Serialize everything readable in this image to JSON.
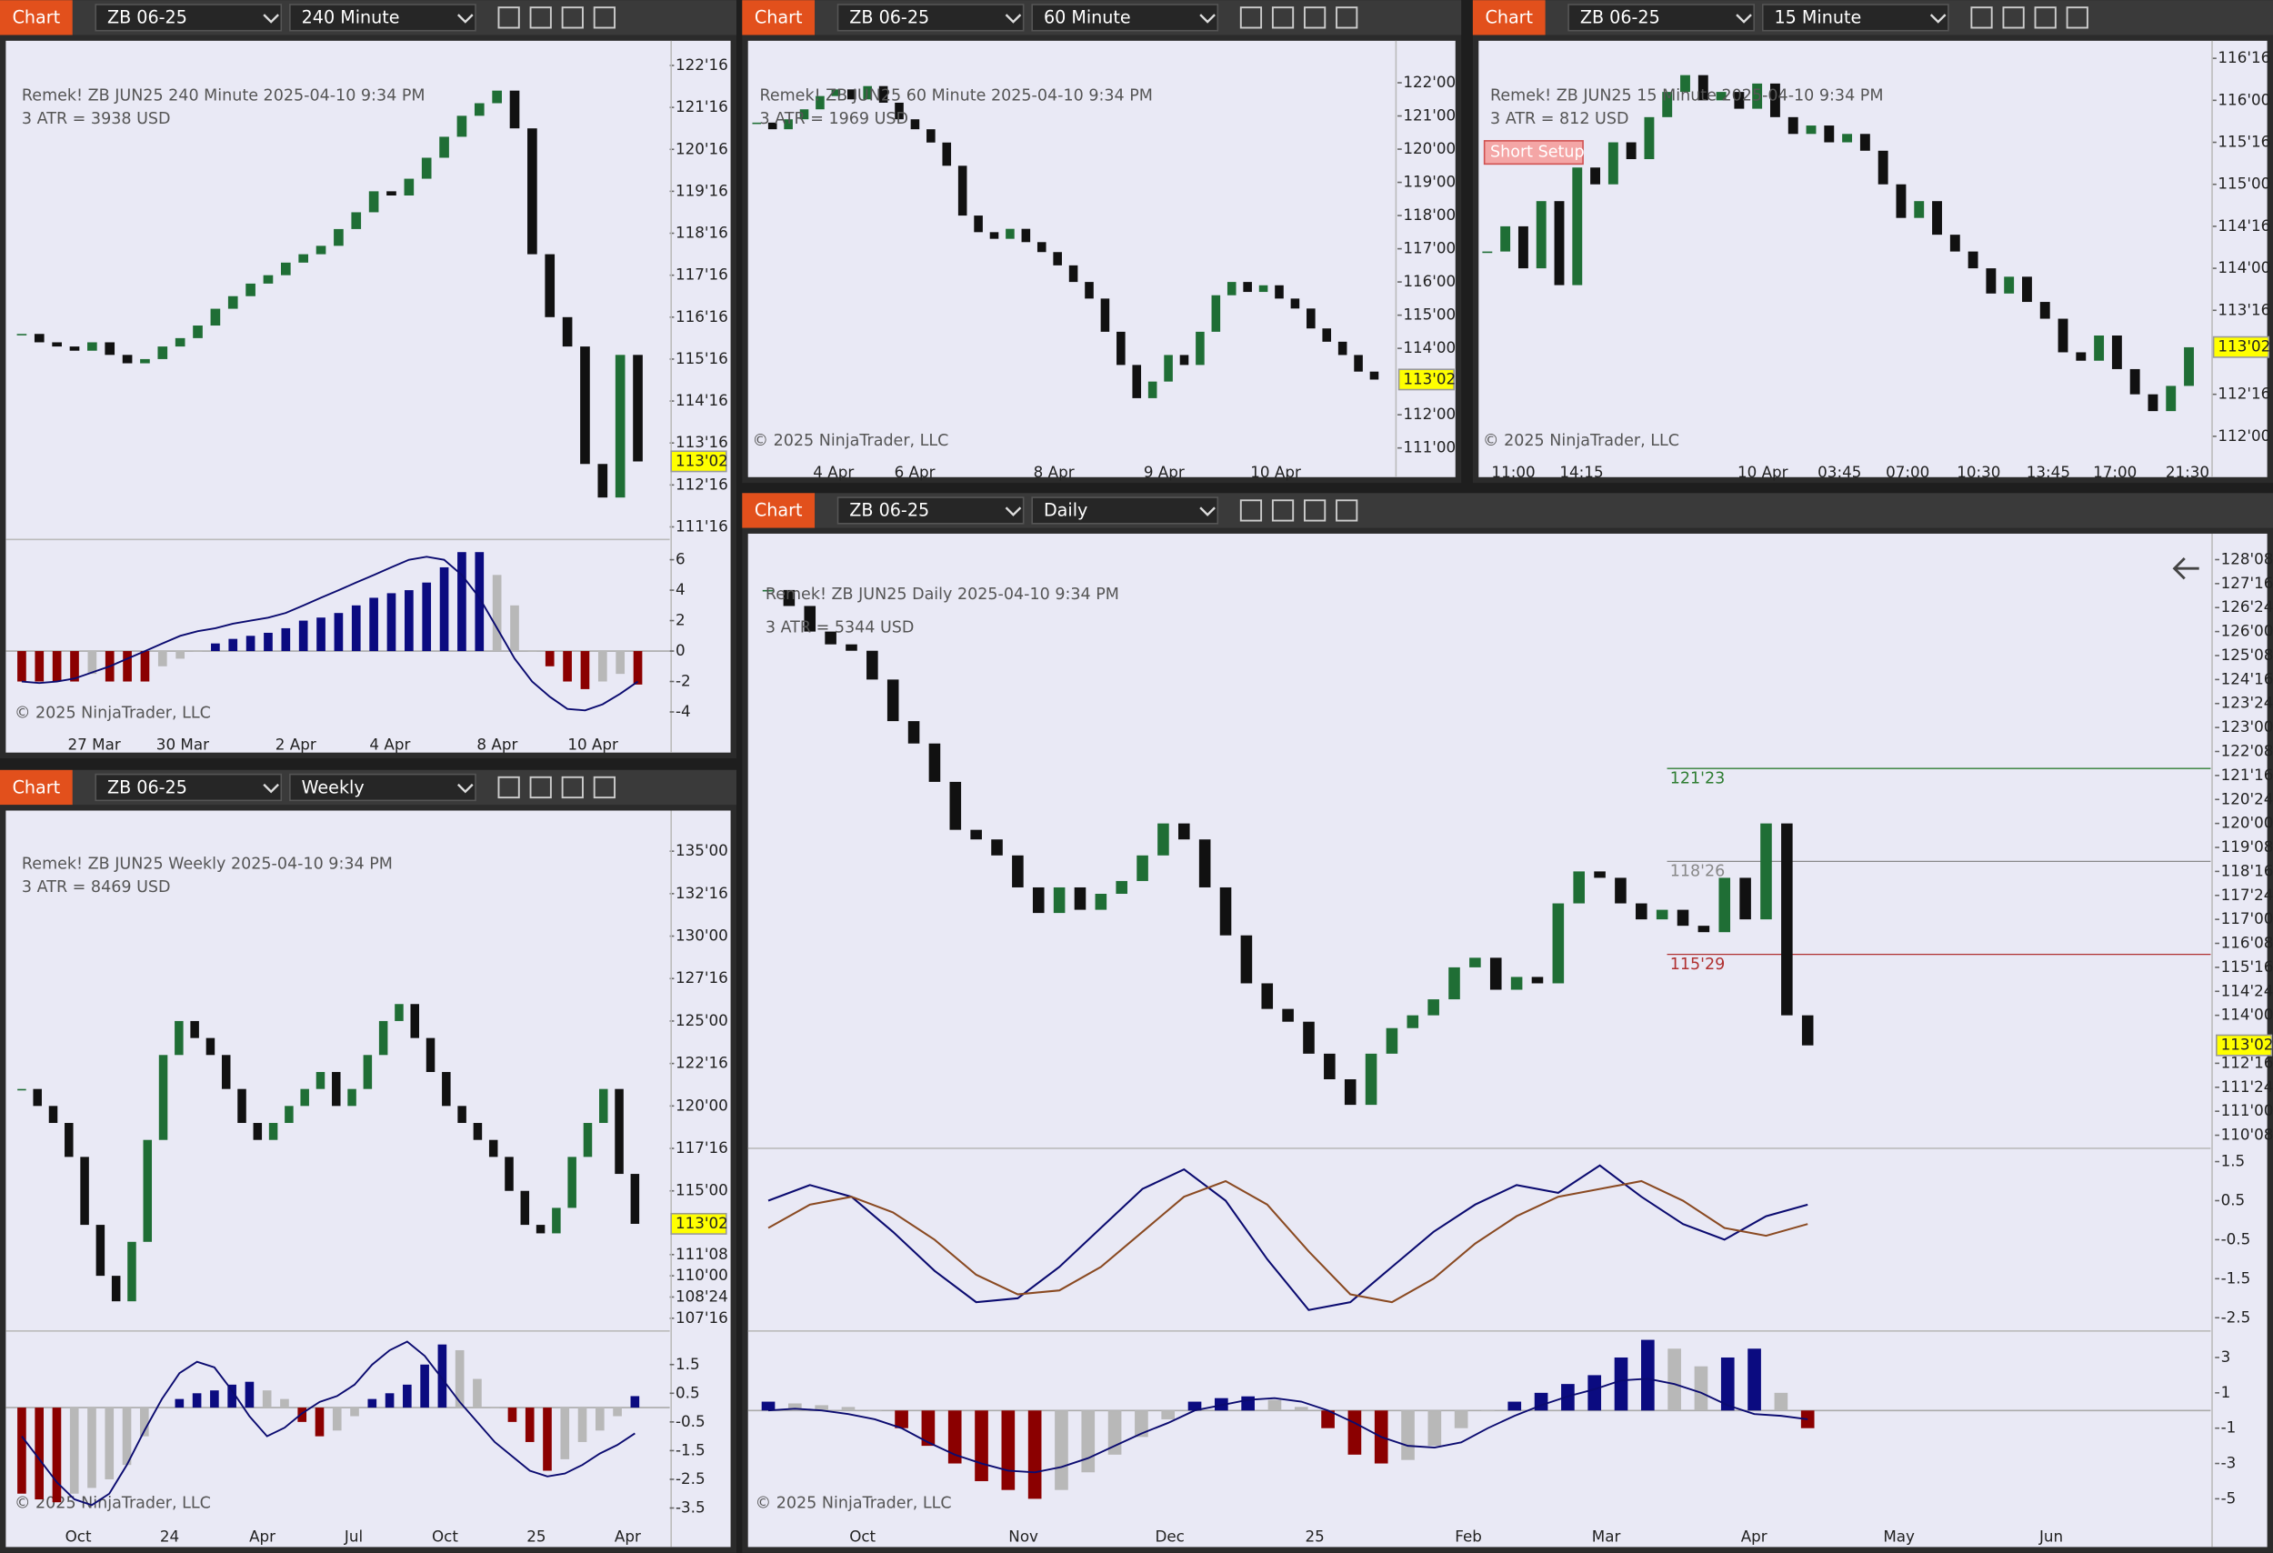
{
  "panels": [
    {
      "toolbar": {
        "label": "Chart",
        "instrument": "ZB 06-25",
        "interval": "240 Minute"
      },
      "info": "Remek!  ZB JUN25  240 Minute  2025-04-10 9:34 PM",
      "atr": "3 ATR = 3938 USD",
      "copyright": "© 2025 NinjaTrader, LLC",
      "last_price": {
        "value": 113.0625,
        "label": "113'02"
      },
      "ylim": [
        111.2,
        122.95
      ],
      "yticks": [
        {
          "value": 122.5,
          "label": "122'16"
        },
        {
          "value": 121.5,
          "label": "121'16"
        },
        {
          "value": 120.5,
          "label": "120'16"
        },
        {
          "value": 119.5,
          "label": "119'16"
        },
        {
          "value": 118.5,
          "label": "118'16"
        },
        {
          "value": 117.5,
          "label": "117'16"
        },
        {
          "value": 116.5,
          "label": "116'16"
        },
        {
          "value": 115.5,
          "label": "115'16"
        },
        {
          "value": 114.5,
          "label": "114'16"
        },
        {
          "value": 113.5,
          "label": "113'16"
        },
        {
          "value": 112.5,
          "label": "112'16"
        },
        {
          "value": 111.5,
          "label": "111'16"
        }
      ],
      "time_ticks": [
        "27 Mar",
        "30 Mar",
        "2 Apr",
        "4 Apr",
        "8 Apr",
        "10 Apr"
      ],
      "closes": [
        116.1,
        115.9,
        115.8,
        115.7,
        115.9,
        115.6,
        115.4,
        115.5,
        115.8,
        116.0,
        116.3,
        116.7,
        117.0,
        117.3,
        117.5,
        117.8,
        118.0,
        118.2,
        118.6,
        119.0,
        119.5,
        119.4,
        119.8,
        120.3,
        120.8,
        121.3,
        121.6,
        121.9,
        121.0,
        118.0,
        116.5,
        115.8,
        113.0,
        112.2,
        115.6,
        113.06
      ],
      "up_color": "#1f6e35",
      "down_color": "#111111",
      "indicator": {
        "ylim": [
          -5.05,
          7.33
        ],
        "yticks": [
          6,
          4,
          2,
          0,
          -2,
          -4
        ],
        "hist": [
          -2,
          -2,
          -2,
          -2,
          -1.5,
          -2,
          -2,
          -2,
          -1,
          -0.5,
          0,
          0.5,
          0.8,
          1,
          1.2,
          1.5,
          2,
          2.2,
          2.5,
          3,
          3.5,
          3.8,
          4,
          4.5,
          5.5,
          6.5,
          6.5,
          5,
          3,
          0,
          -1,
          -2,
          -2.5,
          -2,
          -1.5,
          -2.2
        ],
        "signal": [
          -2,
          -2.1,
          -2,
          -1.8,
          -1.4,
          -1,
          -0.5,
          0,
          0.5,
          1,
          1.3,
          1.5,
          1.8,
          2,
          2.2,
          2.5,
          3,
          3.5,
          4,
          4.5,
          5,
          5.5,
          6,
          6.2,
          6,
          5,
          3.5,
          1.5,
          -0.5,
          -2,
          -3,
          -3.8,
          -3.9,
          -3.5,
          -2.8,
          -2
        ],
        "pos_color": "#0b0b80",
        "neg_color": "#8b0000",
        "bar_color": "#b8b8b8",
        "line_color": "#0b0b70"
      }
    },
    {
      "toolbar": {
        "label": "Chart",
        "instrument": "ZB 06-25",
        "interval": "60 Minute"
      },
      "info": "Remek!  ZB JUN25  60 Minute  2025-04-10 9:34 PM",
      "atr": "3 ATR = 1969 USD",
      "copyright": "© 2025 NinjaTrader, LLC",
      "last_price": {
        "value": 113.0625,
        "label": "113'02"
      },
      "ylim": [
        110.82,
        123.09
      ],
      "yticks": [
        {
          "value": 122,
          "label": "122'00"
        },
        {
          "value": 121,
          "label": "121'00"
        },
        {
          "value": 120,
          "label": "120'00"
        },
        {
          "value": 119,
          "label": "119'00"
        },
        {
          "value": 118,
          "label": "118'00"
        },
        {
          "value": 117,
          "label": "117'00"
        },
        {
          "value": 116,
          "label": "116'00"
        },
        {
          "value": 115,
          "label": "115'00"
        },
        {
          "value": 114,
          "label": "114'00"
        },
        {
          "value": 112,
          "label": "112'00"
        },
        {
          "value": 111,
          "label": "111'00"
        }
      ],
      "time_ticks": [
        "4 Apr",
        "6 Apr",
        "8 Apr",
        "9 Apr",
        "10 Apr"
      ],
      "closes": [
        120.8,
        120.6,
        120.9,
        121.2,
        121.6,
        121.8,
        121.5,
        121.9,
        121.4,
        120.9,
        120.6,
        120.2,
        119.5,
        118,
        117.5,
        117.3,
        117.6,
        117.2,
        116.9,
        116.5,
        116,
        115.5,
        114.5,
        113.5,
        112.5,
        113,
        113.8,
        113.5,
        114.5,
        115.6,
        116,
        115.7,
        115.9,
        115.5,
        115.2,
        114.6,
        114.2,
        113.8,
        113.3,
        113.06
      ],
      "up_color": "#1f6e35",
      "down_color": "#111111"
    },
    {
      "toolbar": {
        "label": "Chart",
        "instrument": "ZB 06-25",
        "interval": "15 Minute"
      },
      "info": "Remek!  ZB JUN25  15 Minute  2025-04-10 9:34 PM",
      "atr": "3 ATR = 812 USD",
      "copyright": "© 2025 NinjaTrader, LLC",
      "tag": "Short Setup",
      "last_price": {
        "value": 113.0625,
        "label": "113'02"
      },
      "ylim": [
        111.79,
        116.64
      ],
      "yticks": [
        {
          "value": 116.5,
          "label": "116'16"
        },
        {
          "value": 116,
          "label": "116'00"
        },
        {
          "value": 115.5,
          "label": "115'16"
        },
        {
          "value": 115,
          "label": "115'00"
        },
        {
          "value": 114.5,
          "label": "114'16"
        },
        {
          "value": 114,
          "label": "114'00"
        },
        {
          "value": 113.5,
          "label": "113'16"
        },
        {
          "value": 112.5,
          "label": "112'16"
        },
        {
          "value": 112,
          "label": "112'00"
        }
      ],
      "time_ticks": [
        "11:00",
        "14:15",
        "10 Apr",
        "03:45",
        "07:00",
        "10:30",
        "13:45",
        "17:00",
        "21:30"
      ],
      "closes": [
        114.2,
        114.5,
        114.0,
        114.8,
        113.8,
        115.2,
        115.0,
        115.5,
        115.3,
        115.8,
        116.1,
        116.3,
        116.0,
        116.1,
        115.9,
        116.2,
        115.8,
        115.6,
        115.7,
        115.5,
        115.6,
        115.4,
        115.0,
        114.6,
        114.8,
        114.4,
        114.2,
        114.0,
        113.7,
        113.9,
        113.6,
        113.4,
        113.0,
        112.9,
        113.2,
        112.8,
        112.5,
        112.3,
        112.6,
        113.06
      ],
      "up_color": "#1f6e35",
      "down_color": "#111111"
    },
    {
      "toolbar": {
        "label": "Chart",
        "instrument": "ZB 06-25",
        "interval": "Weekly"
      },
      "info": "Remek!  ZB JUN25  Weekly  2025-04-10 9:34 PM",
      "atr": "3 ATR = 8469 USD",
      "copyright": "© 2025 NinjaTrader, LLC",
      "last_price": {
        "value": 113.0625,
        "label": "113'02"
      },
      "ylim": [
        106.75,
        137.05
      ],
      "yticks": [
        {
          "value": 135,
          "label": "135'00"
        },
        {
          "value": 132.5,
          "label": "132'16"
        },
        {
          "value": 130,
          "label": "130'00"
        },
        {
          "value": 127.5,
          "label": "127'16"
        },
        {
          "value": 125,
          "label": "125'00"
        },
        {
          "value": 122.5,
          "label": "122'16"
        },
        {
          "value": 120,
          "label": "120'00"
        },
        {
          "value": 117.5,
          "label": "117'16"
        },
        {
          "value": 115,
          "label": "115'00"
        },
        {
          "value": 111.25,
          "label": "111'08"
        },
        {
          "value": 110,
          "label": "110'00"
        },
        {
          "value": 108.75,
          "label": "108'24"
        },
        {
          "value": 107.5,
          "label": "107'16"
        }
      ],
      "time_ticks": [
        "Oct",
        "24",
        "Apr",
        "Jul",
        "Oct",
        "25",
        "Apr"
      ],
      "closes": [
        121,
        120,
        119,
        117,
        113,
        110,
        108.5,
        112,
        118,
        123,
        125,
        124,
        123,
        121,
        119,
        118,
        119,
        120,
        121,
        122,
        120,
        121,
        123,
        125,
        126,
        124,
        122,
        120,
        119,
        118,
        117,
        115,
        113,
        112.5,
        114,
        117,
        119,
        121,
        116,
        113.06
      ],
      "up_color": "#1f6e35",
      "down_color": "#111111",
      "indicator": {
        "ylim": [
          -3.9,
          2.67
        ],
        "yticks": [
          1.5,
          0.5,
          -0.5,
          -1.5,
          -2.5,
          -3.5
        ],
        "hist": [
          -3,
          -3.2,
          -3.3,
          -3,
          -2.8,
          -2.5,
          -2,
          -1,
          0,
          0.3,
          0.5,
          0.6,
          0.8,
          0.9,
          0.6,
          0.3,
          -0.5,
          -1,
          -0.8,
          -0.3,
          0.3,
          0.5,
          0.8,
          1.5,
          2.2,
          2,
          1,
          0,
          -0.5,
          -1.2,
          -2.2,
          -1.8,
          -1.2,
          -0.8,
          -0.3,
          0.4
        ],
        "signal": [
          -1,
          -1.8,
          -2.6,
          -3.2,
          -3.4,
          -3,
          -2,
          -0.8,
          0.3,
          1.2,
          1.6,
          1.4,
          0.6,
          -0.3,
          -1,
          -0.7,
          -0.2,
          0.2,
          0.4,
          0.8,
          1.5,
          2,
          2.3,
          1.8,
          1,
          0.2,
          -0.5,
          -1.2,
          -1.7,
          -2.2,
          -2.4,
          -2.3,
          -2,
          -1.6,
          -1.3,
          -0.9
        ],
        "pos_color": "#0b0b80",
        "neg_color": "#8b0000",
        "bar_color": "#b8b8b8",
        "line_color": "#0b0b70"
      }
    },
    {
      "toolbar": {
        "label": "Chart",
        "instrument": "ZB 06-25",
        "interval": "Daily"
      },
      "info": "Remek!  ZB JUN25  Daily  2025-04-10 9:34 PM",
      "atr": "3 ATR = 5344 USD",
      "copyright": "© 2025 NinjaTrader, LLC",
      "last_price": {
        "value": 113.0625,
        "label": "113'02"
      },
      "ylim": [
        109.84,
        128.88
      ],
      "yticks": [
        {
          "value": 128.25,
          "label": "128'08"
        },
        {
          "value": 127.5,
          "label": "127'16"
        },
        {
          "value": 126.75,
          "label": "126'24"
        },
        {
          "value": 126,
          "label": "126'00"
        },
        {
          "value": 125.25,
          "label": "125'08"
        },
        {
          "value": 124.5,
          "label": "124'16"
        },
        {
          "value": 123.75,
          "label": "123'24"
        },
        {
          "value": 123,
          "label": "123'00"
        },
        {
          "value": 122.25,
          "label": "122'08"
        },
        {
          "value": 121.5,
          "label": "121'16"
        },
        {
          "value": 120.75,
          "label": "120'24"
        },
        {
          "value": 120,
          "label": "120'00"
        },
        {
          "value": 119.25,
          "label": "119'08"
        },
        {
          "value": 118.5,
          "label": "118'16"
        },
        {
          "value": 117.75,
          "label": "117'24"
        },
        {
          "value": 117,
          "label": "117'00"
        },
        {
          "value": 116.25,
          "label": "116'08"
        },
        {
          "value": 115.5,
          "label": "115'16"
        },
        {
          "value": 114.75,
          "label": "114'24"
        },
        {
          "value": 114,
          "label": "114'00"
        },
        {
          "value": 112.5,
          "label": "112'16"
        },
        {
          "value": 111.75,
          "label": "111'24"
        },
        {
          "value": 111,
          "label": "111'00"
        },
        {
          "value": 110.25,
          "label": "110'08"
        }
      ],
      "time_ticks": [
        "Oct",
        "Nov",
        "Dec",
        "25",
        "Feb",
        "Mar",
        "Apr",
        "May",
        "Jun"
      ],
      "annotations": [
        {
          "value": 121.71875,
          "label": "121'23",
          "color": "#2e7d32"
        },
        {
          "value": 118.8125,
          "label": "118'26",
          "color": "#888888"
        },
        {
          "value": 115.90625,
          "label": "115'29",
          "color": "#b03030"
        }
      ],
      "closes": [
        127.3,
        126.8,
        126.0,
        125.6,
        125.4,
        124.5,
        123.2,
        122.5,
        121.3,
        119.8,
        119.5,
        119.0,
        118.0,
        117.2,
        118.0,
        117.3,
        117.8,
        118.2,
        119.0,
        120.0,
        119.5,
        118.0,
        116.5,
        115.0,
        114.2,
        113.8,
        112.8,
        112.0,
        111.2,
        112.8,
        113.6,
        114.0,
        114.5,
        115.5,
        115.8,
        114.8,
        115.2,
        115.0,
        117.5,
        118.5,
        118.3,
        117.5,
        117.0,
        117.3,
        116.8,
        116.6,
        118.3,
        117.0,
        120.0,
        114.0,
        113.06
      ],
      "up_color": "#1f6e35",
      "down_color": "#111111",
      "oscillator": {
        "ylim": [
          -2.84,
          1.84
        ],
        "yticks": [
          1.5,
          0.5,
          -0.5,
          -1.5,
          -2.5
        ],
        "series": [
          {
            "color": "#0b0b70",
            "values": [
              0.5,
              0.9,
              0.6,
              -0.3,
              -1.3,
              -2.1,
              -2.0,
              -1.2,
              -0.2,
              0.8,
              1.3,
              0.5,
              -1.0,
              -2.3,
              -2.1,
              -1.2,
              -0.3,
              0.4,
              0.9,
              0.7,
              1.4,
              0.6,
              -0.1,
              -0.5,
              0.1,
              0.4
            ]
          },
          {
            "color": "#8a4a22",
            "values": [
              -0.2,
              0.4,
              0.6,
              0.2,
              -0.5,
              -1.4,
              -1.9,
              -1.8,
              -1.2,
              -0.3,
              0.6,
              1.0,
              0.4,
              -0.8,
              -1.9,
              -2.1,
              -1.5,
              -0.6,
              0.1,
              0.6,
              0.8,
              1.0,
              0.5,
              -0.2,
              -0.4,
              -0.1
            ]
          }
        ]
      },
      "indicator": {
        "ylim": [
          -6.17,
          4.5
        ],
        "yticks": [
          3,
          1,
          -1,
          -3,
          -5
        ],
        "hist": [
          0.5,
          0.4,
          0.3,
          0.2,
          0,
          -1,
          -2,
          -3,
          -4,
          -4.5,
          -5,
          -4.5,
          -3.5,
          -2.5,
          -1.5,
          -0.5,
          0.5,
          0.7,
          0.8,
          0.6,
          0.2,
          -1,
          -2.5,
          -3,
          -2.8,
          -2,
          -1,
          0,
          0.5,
          1,
          1.5,
          2,
          3,
          4,
          3.5,
          2.5,
          3,
          3.5,
          1,
          -1
        ],
        "signal": [
          0,
          0.1,
          0,
          -0.2,
          -0.5,
          -1,
          -1.8,
          -2.5,
          -3,
          -3.4,
          -3.5,
          -3.2,
          -2.7,
          -2,
          -1.3,
          -0.7,
          0,
          0.3,
          0.6,
          0.7,
          0.5,
          0,
          -0.7,
          -1.5,
          -2,
          -2.1,
          -1.8,
          -1,
          -0.3,
          0.3,
          0.8,
          1.2,
          1.7,
          1.8,
          1.5,
          1,
          0.3,
          -0.2,
          -0.3,
          -0.5
        ],
        "pos_color": "#0b0b80",
        "neg_color": "#8b0000",
        "bar_color": "#b8b8b8",
        "line_color": "#0b0b70"
      }
    }
  ]
}
